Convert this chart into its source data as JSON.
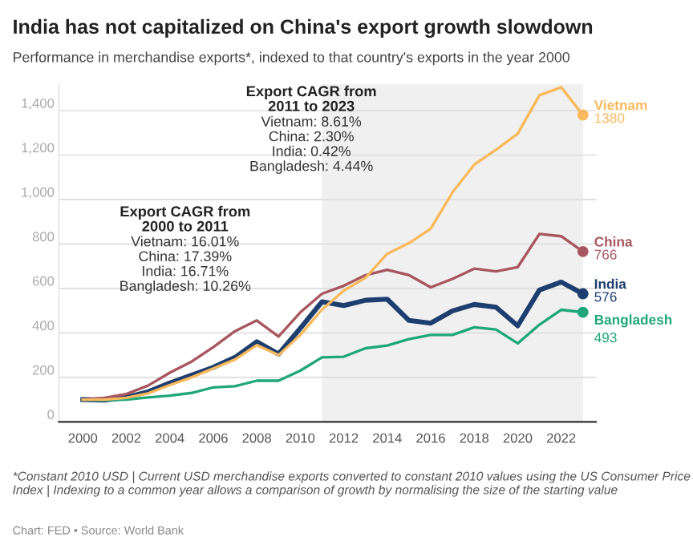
{
  "chart_data": {
    "type": "line",
    "title": "India has not capitalized on China's export growth slowdown",
    "subtitle": "Performance in merchandise exports*, indexed to that country's exports in the year 2000",
    "x": [
      2000,
      2001,
      2002,
      2003,
      2004,
      2005,
      2006,
      2007,
      2008,
      2009,
      2010,
      2011,
      2012,
      2013,
      2014,
      2015,
      2016,
      2017,
      2018,
      2019,
      2020,
      2021,
      2022,
      2023
    ],
    "series": [
      {
        "name": "Vietnam",
        "color": "#f9b95c",
        "values": [
          100,
          100,
          108,
          128,
          165,
          200,
          240,
          280,
          345,
          300,
          390,
          505,
          590,
          648,
          756,
          804,
          869,
          1032,
          1157,
          1224,
          1296,
          1469,
          1505,
          1380
        ],
        "value_labels": [
          null,
          null,
          null,
          null,
          null,
          null,
          null,
          null,
          null,
          null,
          null,
          null,
          null,
          null,
          null,
          null,
          null,
          null,
          null,
          null,
          null,
          null,
          null,
          "1380"
        ]
      },
      {
        "name": "China",
        "color": "#a8565f",
        "values": [
          100,
          108,
          125,
          163,
          221,
          271,
          336,
          408,
          456,
          384,
          492,
          576,
          612,
          660,
          684,
          660,
          605,
          643,
          689,
          677,
          696,
          845,
          835,
          766
        ],
        "value_labels": [
          null,
          null,
          null,
          null,
          null,
          null,
          null,
          null,
          null,
          null,
          null,
          null,
          null,
          null,
          null,
          null,
          null,
          null,
          null,
          null,
          null,
          null,
          null,
          "766"
        ]
      },
      {
        "name": "India",
        "color": "#1d3e6e",
        "values": [
          100,
          98,
          110,
          135,
          175,
          210,
          245,
          290,
          360,
          305,
          420,
          540,
          523,
          547,
          552,
          456,
          444,
          499,
          528,
          516,
          432,
          593,
          629,
          576
        ],
        "value_labels": [
          null,
          null,
          null,
          null,
          null,
          null,
          null,
          null,
          null,
          null,
          null,
          null,
          null,
          null,
          null,
          null,
          null,
          null,
          null,
          null,
          null,
          null,
          null,
          "576"
        ]
      },
      {
        "name": "Bangladesh",
        "color": "#1fa67a",
        "values": [
          100,
          97,
          100,
          110,
          118,
          130,
          155,
          160,
          185,
          185,
          230,
          290,
          293,
          331,
          343,
          372,
          391,
          391,
          425,
          415,
          353,
          437,
          504,
          493
        ],
        "value_labels": [
          null,
          null,
          null,
          null,
          null,
          null,
          null,
          null,
          null,
          null,
          null,
          null,
          null,
          null,
          null,
          null,
          null,
          null,
          null,
          null,
          null,
          null,
          null,
          "493"
        ]
      }
    ],
    "xlim": [
      1998.9,
      2023.6
    ],
    "xticks": [
      2000,
      2002,
      2004,
      2006,
      2008,
      2010,
      2012,
      2014,
      2016,
      2018,
      2020,
      2022
    ],
    "ylim": [
      0,
      1520
    ],
    "yticks": [
      0,
      200,
      400,
      600,
      800,
      {
        "value": 1000,
        "label": "1,000"
      },
      {
        "value": 1200,
        "label": "1,200"
      },
      {
        "value": 1400,
        "label": "1,400"
      }
    ],
    "grid": "y",
    "legend": false,
    "bands": [
      {
        "axis": "x",
        "from": 2011,
        "to": 2023,
        "color": "#f0f0f0"
      }
    ],
    "annotations": [
      "Export CAGR from\n2000 to 2011",
      "Vietnam: 16.01%\nChina: 17.39%\nIndia: 16.71%\nBangladesh: 10.26%",
      "Export CAGR from\n2011 to 2023",
      "Vietnam: 8.61%\nChina: 2.30%\nIndia: 0.42%\nBangladesh: 4.44%",
      "*Constant 2010 USD | Current USD merchandise exports converted to constant 2010 values using the US Consumer Price Index | Indexing to a common year allows a comparison of growth by normalising the size of the starting value",
      "Chart: FED • Source: World Bank"
    ]
  }
}
